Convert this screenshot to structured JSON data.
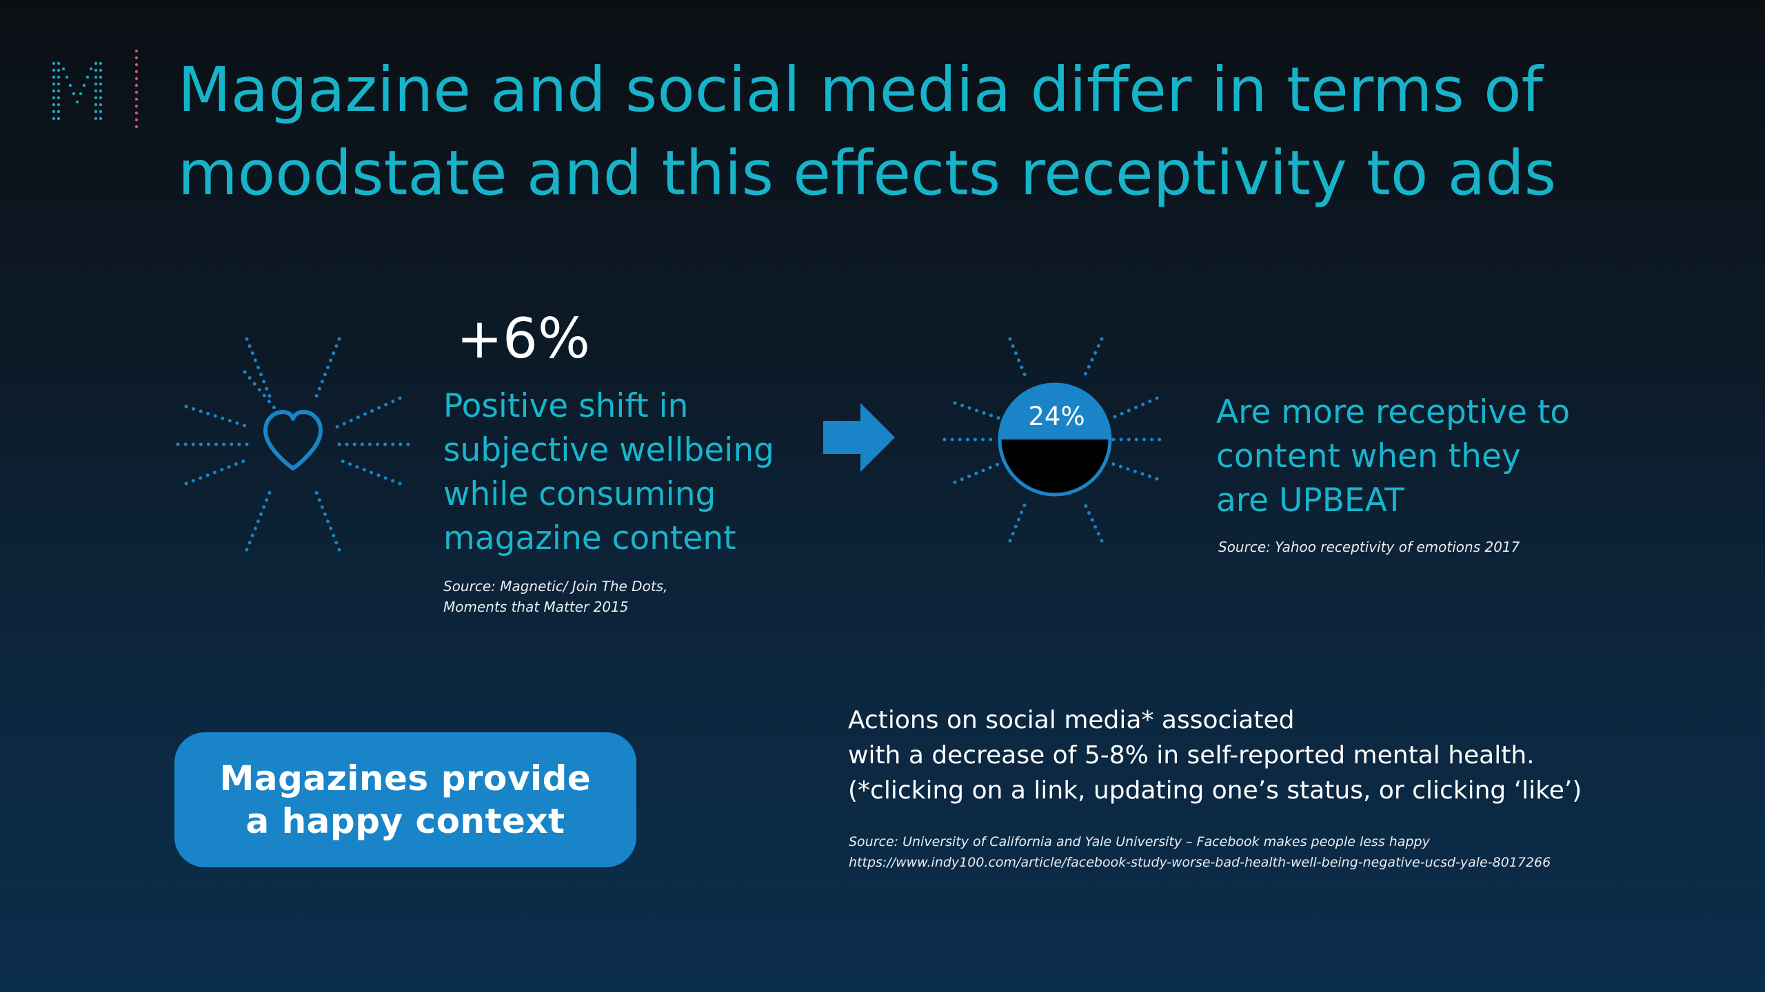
{
  "slide": {
    "title_line1": "Magazine and social media differ in terms of",
    "title_line2": "moodstate and this effects receptivity to ads"
  },
  "wellbeing": {
    "stat": "+6%",
    "desc_line1": "Positive shift in",
    "desc_line2": "subjective wellbeing",
    "desc_line3": "while consuming",
    "desc_line4": "magazine content",
    "source_line1": "Source: Magnetic/ Join The Dots,",
    "source_line2": "Moments that Matter 2015",
    "icon": "heart-burst-icon"
  },
  "receptivity": {
    "percent": "24%",
    "fill_fraction": 0.5,
    "desc_line1": "Are more receptive to",
    "desc_line2": "content when they",
    "desc_line3": "are UPBEAT",
    "source": "Source: Yahoo receptivity of emotions 2017",
    "icon": "half-filled-circle-burst-icon"
  },
  "callout": {
    "line1": "Magazines provide",
    "line2": "a happy context"
  },
  "social": {
    "line1": "Actions on social media* associated",
    "line2": "with a decrease of 5-8% in self-reported mental health.",
    "line3": "(*clicking on a link, updating one’s status, or clicking ‘like’)",
    "source_line1": "Source: University of California and Yale University – Facebook makes people less happy",
    "source_line2": "https://www.indy100.com/article/facebook-study-worse-bad-health-well-being-negative-ucsd-yale-8017266"
  },
  "colors": {
    "accent_teal": "#17b3c9",
    "accent_blue": "#1a84c8",
    "logo_pink": "#e84a6f"
  }
}
